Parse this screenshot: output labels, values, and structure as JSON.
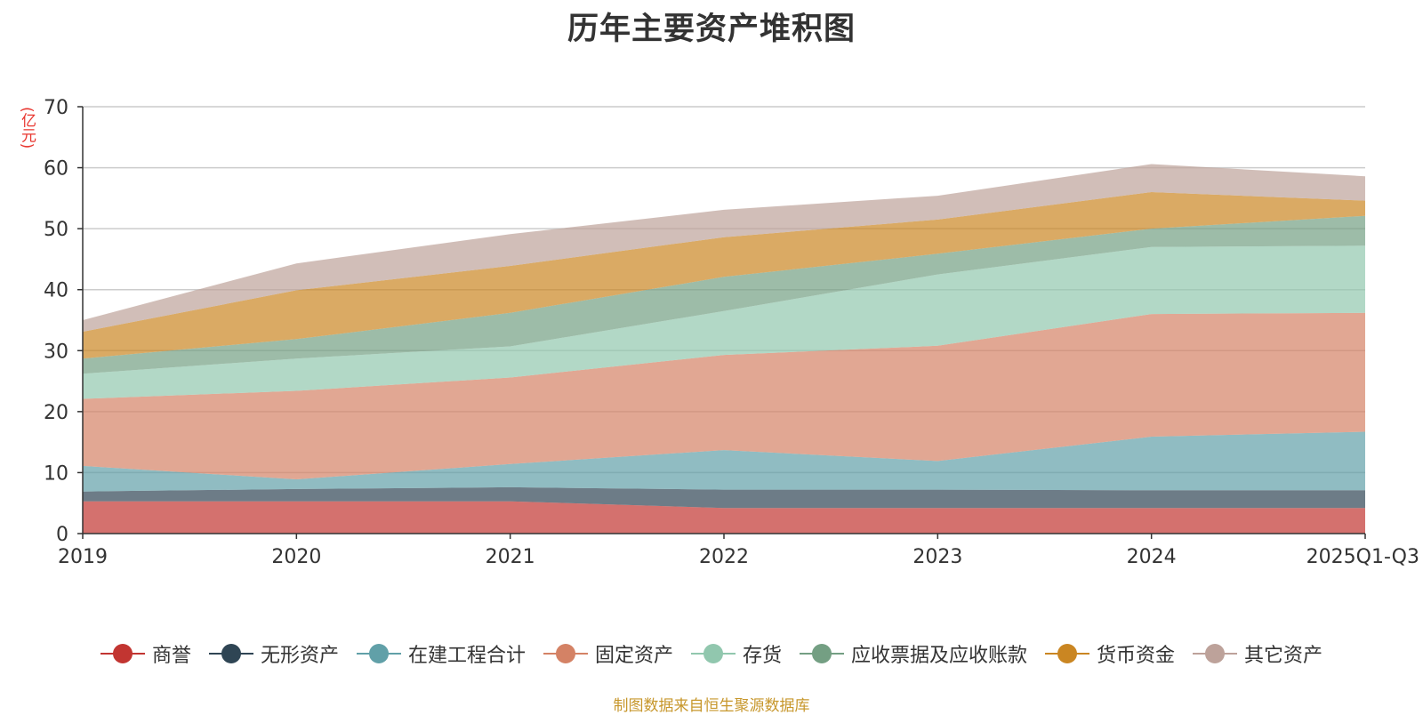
{
  "chart_data": {
    "type": "area",
    "stacked": true,
    "title": "历年主要资产堆积图",
    "unit_label": "(亿元)",
    "x": [
      "2019",
      "2020",
      "2021",
      "2022",
      "2023",
      "2024",
      "2025Q1-Q3"
    ],
    "ylim": [
      0,
      70
    ],
    "yticks": [
      0,
      10,
      20,
      30,
      40,
      50,
      60,
      70
    ],
    "grid": true,
    "legend_position": "bottom",
    "series": [
      {
        "name": "商誉",
        "color": "#c23531",
        "values": [
          5.3,
          5.3,
          5.3,
          4.2,
          4.2,
          4.2,
          4.2
        ]
      },
      {
        "name": "无形资产",
        "color": "#2f4554",
        "values": [
          1.6,
          2.0,
          2.3,
          3.0,
          3.0,
          2.9,
          2.9
        ]
      },
      {
        "name": "在建工程合计",
        "color": "#61a0a8",
        "values": [
          4.2,
          1.6,
          3.8,
          6.5,
          4.7,
          8.8,
          9.6
        ]
      },
      {
        "name": "固定资产",
        "color": "#d48265",
        "values": [
          11.0,
          14.5,
          14.2,
          15.6,
          18.9,
          20.1,
          19.5
        ]
      },
      {
        "name": "存货",
        "color": "#91c7ae",
        "values": [
          4.1,
          5.3,
          5.1,
          7.2,
          11.7,
          11.0,
          11.0
        ]
      },
      {
        "name": "应收票据及应收账款",
        "color": "#749f83",
        "values": [
          2.5,
          3.2,
          5.5,
          5.6,
          3.4,
          3.0,
          4.9
        ]
      },
      {
        "name": "货币资金",
        "color": "#ca8622",
        "values": [
          4.4,
          8.0,
          7.7,
          6.5,
          5.6,
          6.0,
          2.5
        ]
      },
      {
        "name": "其它资产",
        "color": "#bda29a",
        "values": [
          1.9,
          4.4,
          5.2,
          4.5,
          3.9,
          4.6,
          4.0
        ]
      }
    ]
  },
  "footer": {
    "source": "制图数据来自恒生聚源数据库"
  }
}
